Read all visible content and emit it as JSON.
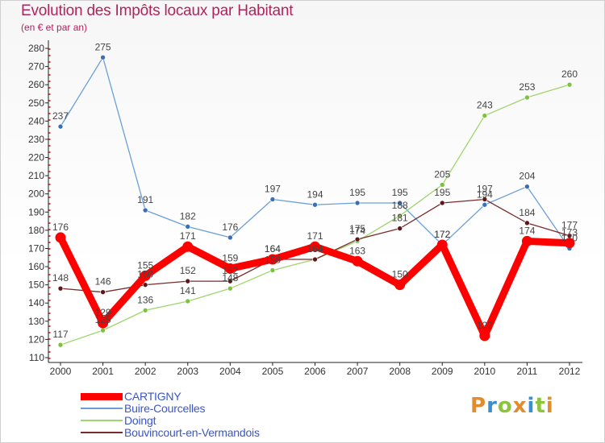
{
  "title": "Evolution des Impôts locaux par Habitant",
  "subtitle": "(en € et par an)",
  "logo": {
    "text": "Proxiti",
    "letters": [
      "P",
      "r",
      "o",
      "x",
      "i",
      "t",
      "i"
    ],
    "colors": [
      "#e38b2d",
      "#3b8fd1",
      "#8cc43d",
      "#e38b2d",
      "#3b8fd1",
      "#8cc43d",
      "#e38b2d"
    ]
  },
  "chart_data": {
    "type": "line",
    "title": "Evolution des Impôts locaux par Habitant",
    "subtitle": "(en € et par an)",
    "x": [
      "2000",
      "2001",
      "2002",
      "2003",
      "2004",
      "2005",
      "2006",
      "2007",
      "2008",
      "2009",
      "2010",
      "2011",
      "2012"
    ],
    "ylim": [
      110,
      280
    ],
    "yticks": [
      110,
      120,
      130,
      140,
      150,
      160,
      170,
      180,
      190,
      200,
      210,
      220,
      230,
      240,
      250,
      260,
      270,
      280
    ],
    "grid": false,
    "legend_position": "bottom-left",
    "series": [
      {
        "name": "Buire-Courcelles",
        "color": "#6b9fd8",
        "marker": "#3a6fb8",
        "width": 1.3,
        "values": [
          237,
          275,
          191,
          182,
          176,
          197,
          194,
          195,
          195,
          172,
          194,
          204,
          170
        ]
      },
      {
        "name": "Doingt",
        "color": "#9ed56c",
        "marker": "#7dc23e",
        "width": 1.3,
        "values": [
          117,
          125,
          136,
          141,
          148,
          158,
          164,
          174,
          188,
          205,
          243,
          253,
          260
        ]
      },
      {
        "name": "Bouvincourt-en-Vermandois",
        "color": "#7a2a2a",
        "marker": "#5c1818",
        "width": 1.3,
        "values": [
          148,
          146,
          150,
          152,
          152,
          164,
          164,
          175,
          181,
          195,
          197,
          184,
          177
        ]
      },
      {
        "name": "CARTIGNY",
        "color": "#ff0000",
        "marker": "#ff0000",
        "width": 9,
        "values": [
          176,
          129,
          155,
          171,
          159,
          164,
          171,
          163,
          150,
          172,
          122,
          174,
          173
        ]
      }
    ],
    "data_labels": [
      [
        "237",
        "275",
        "191",
        "182",
        "176",
        "197",
        "194",
        "195",
        "195",
        "172",
        "194",
        "204",
        "170"
      ],
      [
        "117",
        "125",
        "136",
        "141",
        "148",
        "158",
        "164",
        "174",
        "188",
        "205",
        "243",
        "253",
        "260"
      ],
      [
        "148",
        "146",
        "150",
        "152",
        "152",
        "164",
        "164",
        "175",
        "181",
        "195",
        "197",
        "184",
        "177"
      ],
      [
        "176",
        "129",
        "155",
        "171",
        "159",
        "164",
        "171",
        "163",
        "150",
        "172",
        "122",
        "174",
        "173"
      ]
    ]
  }
}
